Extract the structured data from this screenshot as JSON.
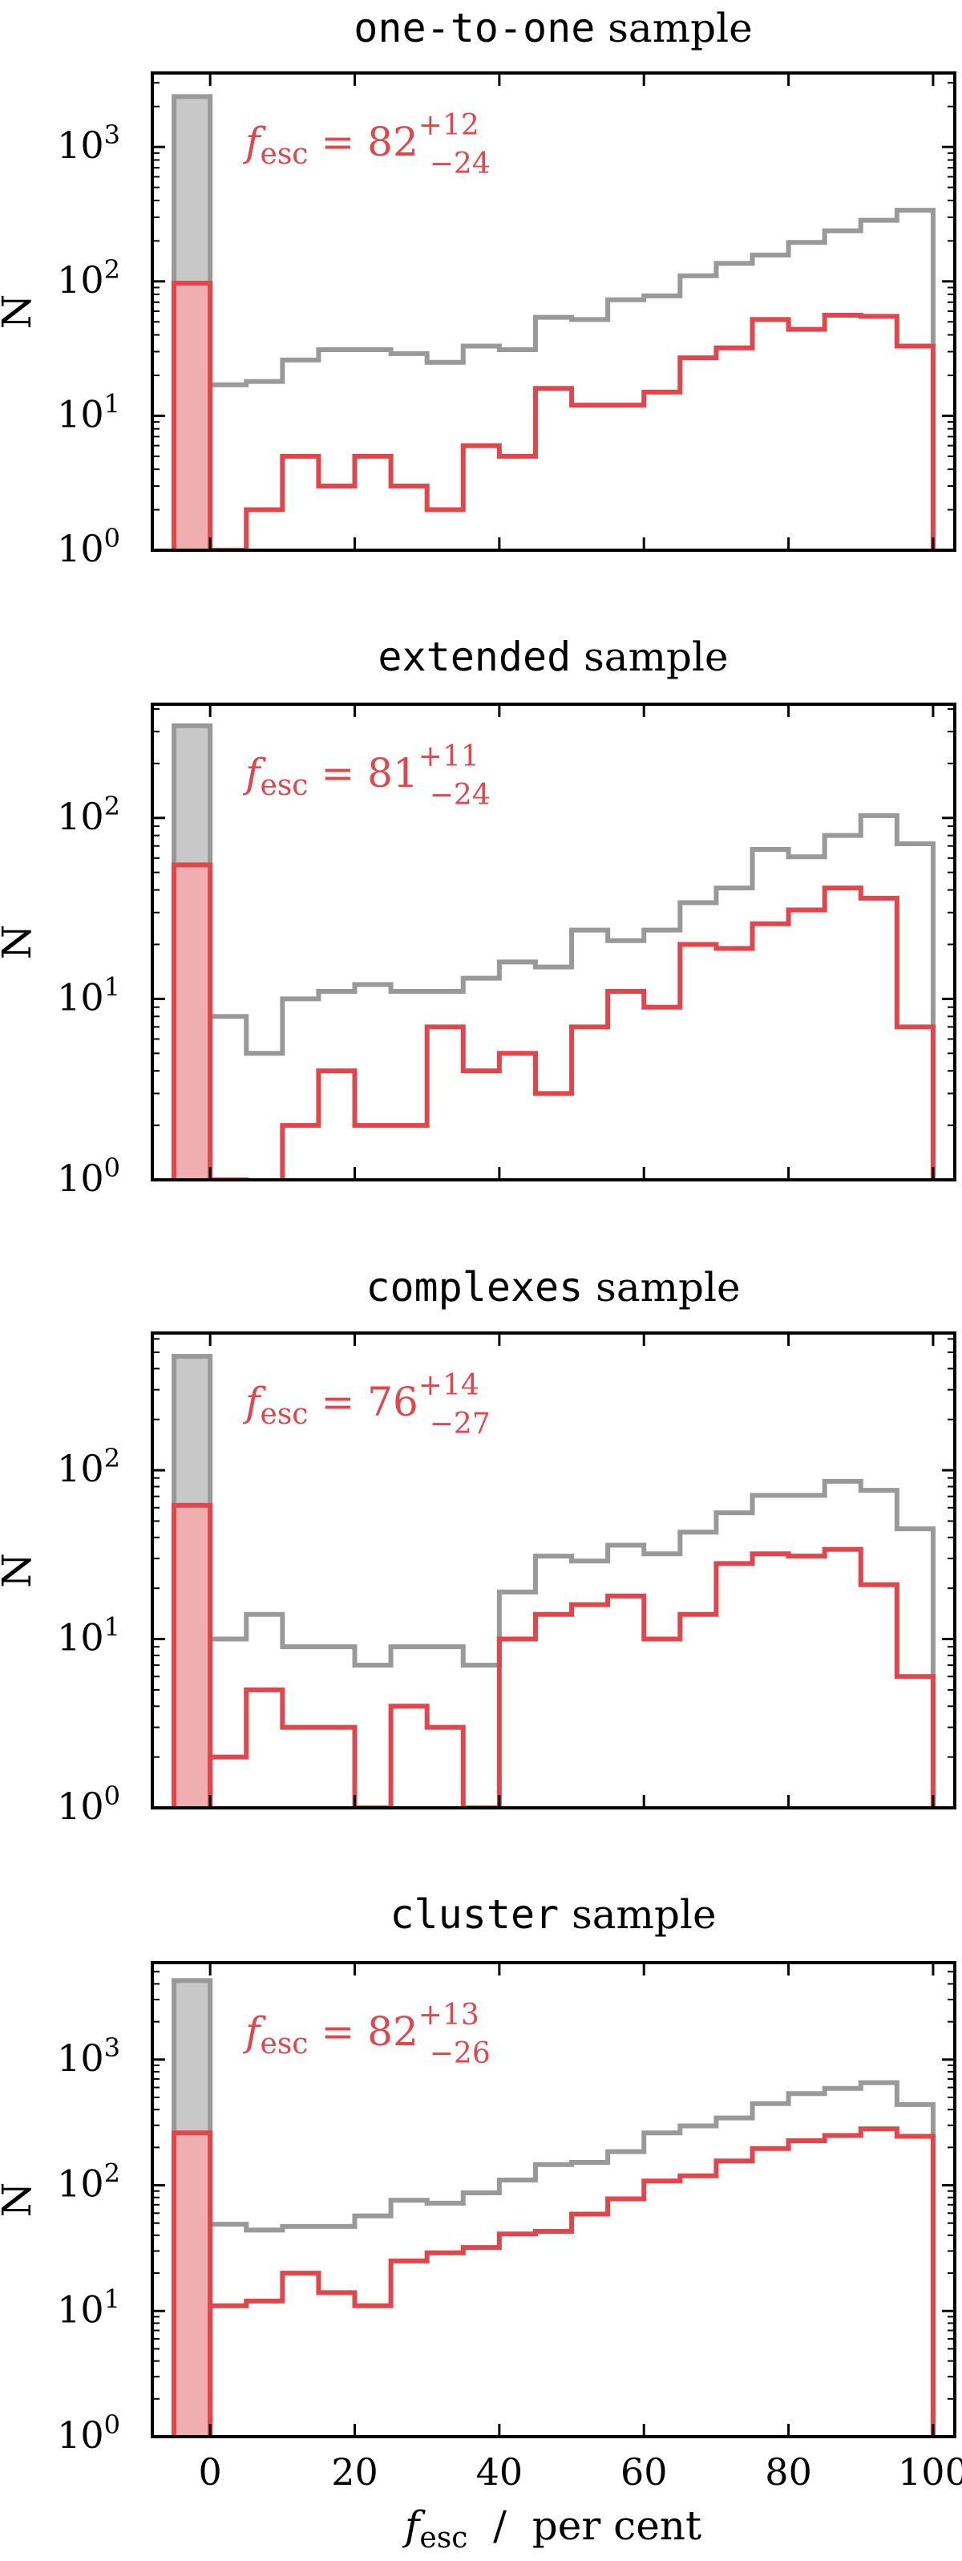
{
  "chart_data": [
    {
      "type": "histogram",
      "title_mono": "one-to-one",
      "title_rest": " sample",
      "annotation": {
        "symbol": "f",
        "subscript": "esc",
        "equals": " = ",
        "value": "82",
        "plus": "+12",
        "minus": "−24"
      },
      "xlim": [
        -8,
        103
      ],
      "ylim": [
        1,
        3550
      ],
      "yscale": "log",
      "ylabel": "N",
      "yticks": [
        {
          "base": "10",
          "exp": "0"
        },
        {
          "base": "10",
          "exp": "1"
        },
        {
          "base": "10",
          "exp": "2"
        },
        {
          "base": "10",
          "exp": "3"
        }
      ],
      "undetermined_bin": [
        -5,
        0
      ],
      "bin_edges_start": 0,
      "bin_width": 5,
      "series": [
        {
          "color": "#999999",
          "fill": "#c8c8c8",
          "undetermined": 2370,
          "values": [
            17,
            18,
            26,
            31,
            31,
            29,
            25,
            33,
            31,
            54,
            52,
            73,
            78,
            110,
            136,
            157,
            195,
            238,
            285,
            338
          ]
        },
        {
          "color": "#e0474d",
          "fill": "#f0aeb0",
          "undetermined": 97,
          "values": [
            1,
            2,
            5,
            3,
            5,
            3,
            2,
            6,
            5,
            16,
            12,
            12,
            15,
            27,
            32,
            52,
            44,
            56,
            55,
            33
          ]
        }
      ]
    },
    {
      "type": "histogram",
      "title_mono": "extended",
      "title_rest": " sample",
      "annotation": {
        "symbol": "f",
        "subscript": "esc",
        "equals": " = ",
        "value": "81",
        "plus": "+11",
        "minus": "−24"
      },
      "xlim": [
        -8,
        103
      ],
      "ylim": [
        1,
        425
      ],
      "yscale": "log",
      "ylabel": "N",
      "yticks": [
        {
          "base": "10",
          "exp": "0"
        },
        {
          "base": "10",
          "exp": "1"
        },
        {
          "base": "10",
          "exp": "2"
        }
      ],
      "undetermined_bin": [
        -5,
        0
      ],
      "bin_edges_start": 0,
      "bin_width": 5,
      "series": [
        {
          "color": "#999999",
          "fill": "#c8c8c8",
          "undetermined": 323,
          "values": [
            8,
            5,
            10,
            11,
            12,
            11,
            11,
            13,
            16,
            15,
            24,
            21,
            24,
            34,
            41,
            67,
            61,
            80,
            103,
            72
          ]
        },
        {
          "color": "#e0474d",
          "fill": "#f0aeb0",
          "undetermined": 55,
          "values": [
            1,
            0,
            2,
            4,
            2,
            2,
            7,
            4,
            5,
            3,
            7,
            11,
            9,
            20,
            19,
            26,
            31,
            41,
            36,
            7
          ]
        }
      ]
    },
    {
      "type": "histogram",
      "title_mono": "complexes",
      "title_rest": " sample",
      "annotation": {
        "symbol": "f",
        "subscript": "esc",
        "equals": " = ",
        "value": "76",
        "plus": "+14",
        "minus": "−27"
      },
      "xlim": [
        -8,
        103
      ],
      "ylim": [
        1,
        650
      ],
      "yscale": "log",
      "ylabel": "N",
      "yticks": [
        {
          "base": "10",
          "exp": "0"
        },
        {
          "base": "10",
          "exp": "1"
        },
        {
          "base": "10",
          "exp": "2"
        }
      ],
      "undetermined_bin": [
        -5,
        0
      ],
      "bin_edges_start": 0,
      "bin_width": 5,
      "series": [
        {
          "color": "#999999",
          "fill": "#c8c8c8",
          "undetermined": 473,
          "values": [
            10,
            14,
            9,
            9,
            7,
            9,
            9,
            7,
            19,
            31,
            29,
            36,
            32,
            43,
            56,
            71,
            71,
            86,
            76,
            45
          ]
        },
        {
          "color": "#e0474d",
          "fill": "#f0aeb0",
          "undetermined": 62,
          "values": [
            2,
            5,
            3,
            3,
            1,
            4,
            3,
            1,
            10,
            14,
            16,
            18,
            10,
            14,
            28,
            32,
            31,
            34,
            21,
            6
          ]
        }
      ]
    },
    {
      "type": "histogram",
      "title_mono": "cluster",
      "title_rest": " sample",
      "annotation": {
        "symbol": "f",
        "subscript": "esc",
        "equals": " = ",
        "value": "82",
        "plus": "+13",
        "minus": "−26"
      },
      "xlim": [
        -8,
        103
      ],
      "ylim": [
        1,
        5900
      ],
      "yscale": "log",
      "ylabel": "N",
      "yticks": [
        {
          "base": "10",
          "exp": "0"
        },
        {
          "base": "10",
          "exp": "1"
        },
        {
          "base": "10",
          "exp": "2"
        },
        {
          "base": "10",
          "exp": "3"
        }
      ],
      "xticks": [
        "0",
        "20",
        "40",
        "60",
        "80",
        "100"
      ],
      "xlabel": {
        "symbol": "f",
        "subscript": "esc",
        "rest": "  /  per cent"
      },
      "undetermined_bin": [
        -5,
        0
      ],
      "bin_edges_start": 0,
      "bin_width": 5,
      "series": [
        {
          "color": "#999999",
          "fill": "#c8c8c8",
          "undetermined": 4250,
          "values": [
            49,
            44,
            47,
            47,
            57,
            76,
            72,
            87,
            110,
            146,
            152,
            185,
            261,
            297,
            343,
            446,
            536,
            590,
            655,
            439
          ]
        },
        {
          "color": "#e0474d",
          "fill": "#f0aeb0",
          "undetermined": 261,
          "values": [
            11,
            12,
            20,
            14,
            11,
            25,
            29,
            32,
            41,
            43,
            59,
            78,
            108,
            119,
            156,
            196,
            226,
            249,
            281,
            245
          ]
        }
      ]
    }
  ]
}
